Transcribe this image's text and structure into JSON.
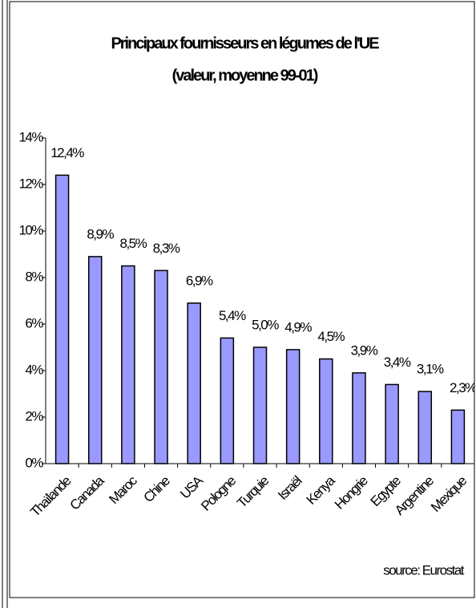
{
  "chart_data": {
    "type": "bar",
    "title": "Principaux fournisseurs en légumes de l'UE",
    "subtitle": "(valeur, moyenne 99-01)",
    "source": "source: Eurostat",
    "categories": [
      "Thaïlande",
      "Canada",
      "Maroc",
      "Chine",
      "USA",
      "Pologne",
      "Turquie",
      "Israël",
      "Kenya",
      "Hongrie",
      "Egypte",
      "Argentine",
      "Mexique"
    ],
    "values": [
      12.4,
      8.9,
      8.5,
      8.3,
      6.9,
      5.4,
      5.0,
      4.9,
      4.5,
      3.9,
      3.4,
      3.1,
      2.3
    ],
    "value_labels": [
      "12,4%",
      "8,9%",
      "8,5%",
      "8,3%",
      "6,9%",
      "5,4%",
      "5,0%",
      "4,9%",
      "4,5%",
      "3,9%",
      "3,4%",
      "3,1%",
      "2,3%"
    ],
    "color": "#9999ff",
    "ylim": [
      0,
      14
    ],
    "yticks": [
      {
        "value": 0,
        "label": "0%"
      },
      {
        "value": 2,
        "label": "2%"
      },
      {
        "value": 4,
        "label": "4%"
      },
      {
        "value": 6,
        "label": "6%"
      },
      {
        "value": 8,
        "label": "8%"
      },
      {
        "value": 10,
        "label": "10%"
      },
      {
        "value": 12,
        "label": "12%"
      },
      {
        "value": 14,
        "label": "14%"
      }
    ],
    "grid": false
  }
}
